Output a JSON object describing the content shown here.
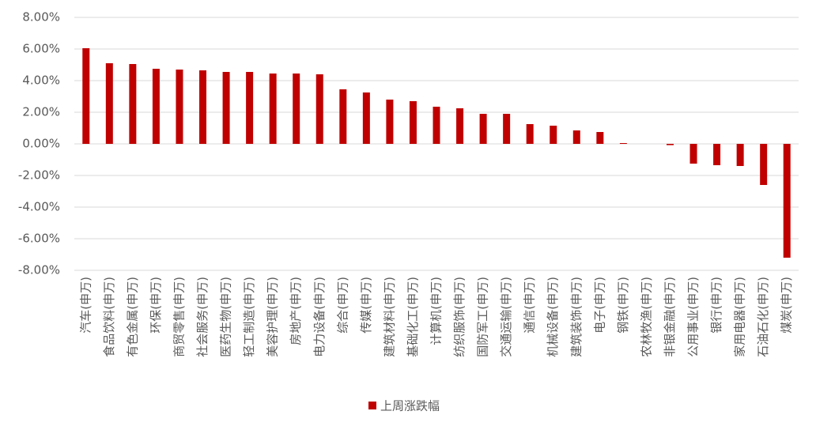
{
  "chart_data": {
    "type": "bar",
    "categories": [
      "汽车(申万)",
      "食品饮料(申万)",
      "有色金属(申万)",
      "环保(申万)",
      "商贸零售(申万)",
      "社会服务(申万)",
      "医药生物(申万)",
      "轻工制造(申万)",
      "美容护理(申万)",
      "房地产(申万)",
      "电力设备(申万)",
      "综合(申万)",
      "传媒(申万)",
      "建筑材料(申万)",
      "基础化工(申万)",
      "计算机(申万)",
      "纺织服饰(申万)",
      "国防军工(申万)",
      "交通运输(申万)",
      "通信(申万)",
      "机械设备(申万)",
      "建筑装饰(申万)",
      "电子(申万)",
      "钢铁(申万)",
      "农林牧渔(申万)",
      "非银金融(申万)",
      "公用事业(申万)",
      "银行(申万)",
      "家用电器(申万)",
      "石油石化(申万)",
      "煤炭(申万)"
    ],
    "series": [
      {
        "name": "上周涨跌幅",
        "color": "#c00000",
        "values": [
          6.05,
          5.1,
          5.05,
          4.75,
          4.7,
          4.65,
          4.55,
          4.55,
          4.45,
          4.45,
          4.4,
          3.45,
          3.25,
          2.8,
          2.7,
          2.35,
          2.25,
          1.9,
          1.9,
          1.25,
          1.15,
          0.85,
          0.75,
          0.05,
          0.0,
          -0.08,
          -1.25,
          -1.35,
          -1.4,
          -2.6,
          -7.2
        ]
      }
    ],
    "ylim": [
      -8,
      8
    ],
    "yticks": [
      {
        "value": -8,
        "label": "-8.00%"
      },
      {
        "value": -6,
        "label": "-6.00%"
      },
      {
        "value": -4,
        "label": "-4.00%"
      },
      {
        "value": -2,
        "label": "-2.00%"
      },
      {
        "value": 0,
        "label": "0.00%"
      },
      {
        "value": 2,
        "label": "2.00%"
      },
      {
        "value": 4,
        "label": "4.00%"
      },
      {
        "value": 6,
        "label": "6.00%"
      },
      {
        "value": 8,
        "label": "8.00%"
      }
    ],
    "grid": true,
    "legend": "bottom"
  }
}
